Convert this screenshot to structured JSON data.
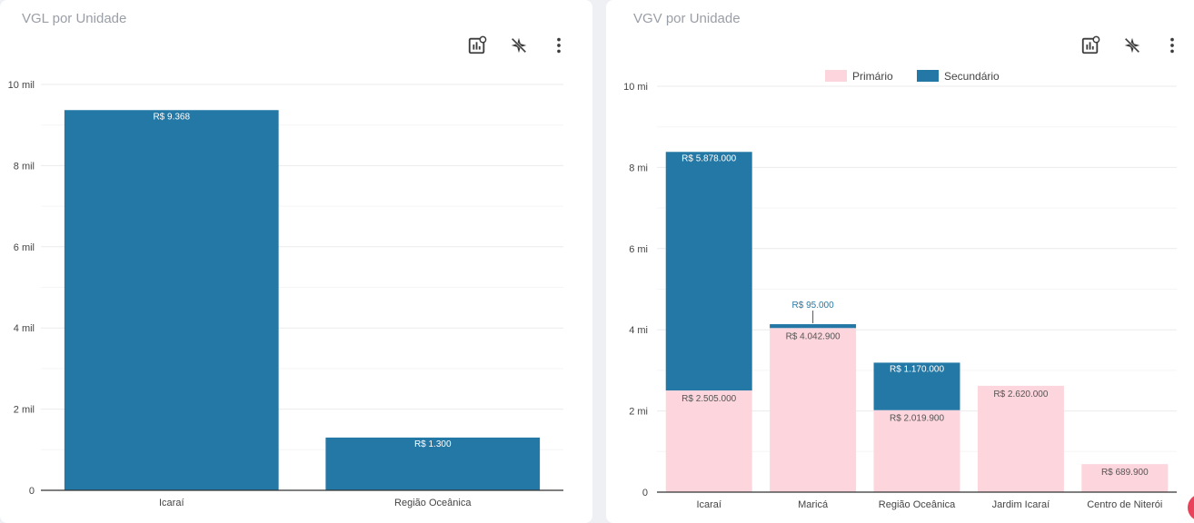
{
  "colors": {
    "secondary": "#2478a6",
    "primary": "#fcd5dd",
    "axis_text": "#444444",
    "grid": "#ebebeb",
    "title": "#9a9ea6",
    "icon": "#3c3c3c"
  },
  "toolbar_icons": [
    "bar-chart-settings-icon",
    "explore-disabled-icon",
    "more-vert-icon"
  ],
  "charts": {
    "vgl": {
      "title": "VGL por Unidade"
    },
    "vgv": {
      "title": "VGV por Unidade"
    }
  },
  "chart_data": [
    {
      "id": "vgl",
      "type": "bar",
      "title": "VGL por Unidade",
      "categories": [
        "Icaraí",
        "Região Oceânica"
      ],
      "values": [
        9368,
        1300
      ],
      "data_labels": [
        "R$ 9.368",
        "R$ 1.300"
      ],
      "ylim": [
        0,
        10000
      ],
      "yticks": [
        0,
        2000,
        4000,
        6000,
        8000,
        10000
      ],
      "ytick_labels": [
        "0",
        "2 mil",
        "4 mil",
        "6 mil",
        "8 mil",
        "10 mil"
      ],
      "grid": true,
      "legend": "none"
    },
    {
      "id": "vgv",
      "type": "bar",
      "stacked": true,
      "title": "VGV por Unidade",
      "categories": [
        "Icaraí",
        "Maricá",
        "Região Oceânica",
        "Jardim Icaraí",
        "Centro de Niterói"
      ],
      "series": [
        {
          "name": "Primário",
          "values": [
            2505000,
            4042900,
            2019900,
            2620000,
            689900
          ],
          "data_labels": [
            "R$ 2.505.000",
            "R$ 4.042.900",
            "R$ 2.019.900",
            "R$ 2.620.000",
            "R$ 689.900"
          ]
        },
        {
          "name": "Secundário",
          "values": [
            5878000,
            95000,
            1170000,
            0,
            0
          ],
          "data_labels": [
            "R$ 5.878.000",
            "R$ 95.000",
            "R$ 1.170.000",
            "",
            ""
          ]
        }
      ],
      "ylim": [
        0,
        10000000
      ],
      "yticks": [
        0,
        2000000,
        4000000,
        6000000,
        8000000,
        10000000
      ],
      "ytick_labels": [
        "0",
        "2 mi",
        "4 mi",
        "6 mi",
        "8 mi",
        "10 mi"
      ],
      "grid": true,
      "legend": "top-center"
    }
  ]
}
